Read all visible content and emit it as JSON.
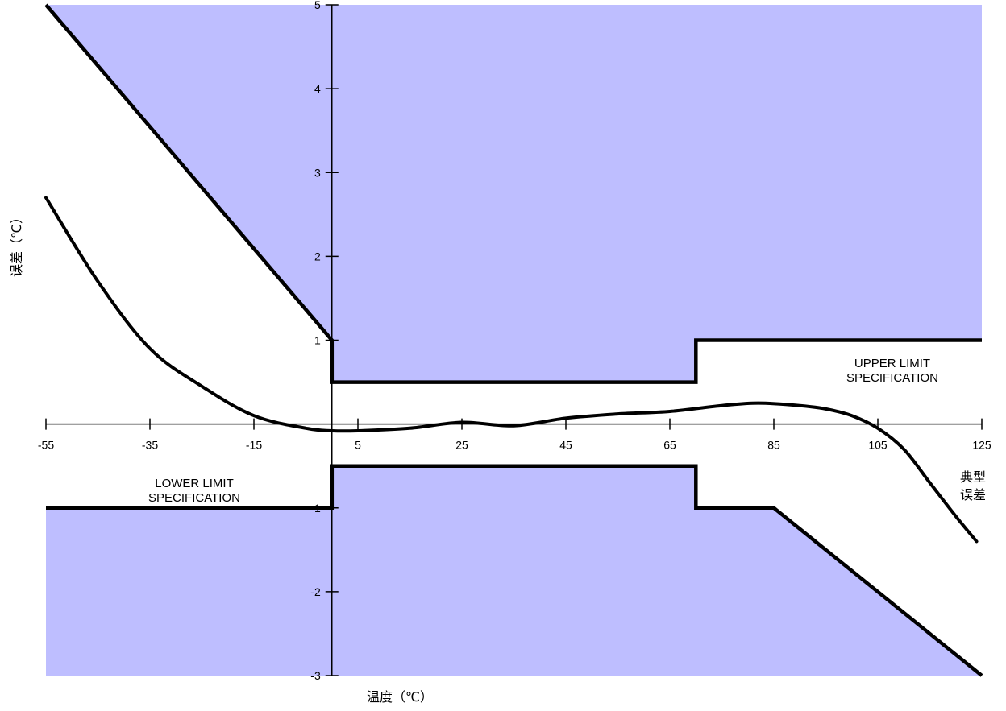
{
  "chart_data": {
    "type": "line",
    "xlabel": "温度（℃）",
    "ylabel": "误差（℃）",
    "xlim": [
      -55,
      125
    ],
    "ylim": [
      -3,
      5
    ],
    "x_ticks": [
      -55,
      -35,
      -15,
      5,
      25,
      45,
      65,
      85,
      105,
      125
    ],
    "y_ticks": [
      5,
      4,
      3,
      2,
      1,
      -1,
      -2,
      -3
    ],
    "x_tick_labels": [
      "-55",
      "-35",
      "-15",
      "5",
      "25",
      "45",
      "65",
      "85",
      "105",
      "125"
    ],
    "y_tick_labels": [
      "5",
      "4",
      "3",
      "2",
      "1",
      "-1",
      "-2",
      "-3"
    ],
    "grid": false,
    "fill_color": "#bebeff",
    "line_color": "#000000",
    "series": [
      {
        "label": "UPPER LIMIT SPECIFICATION",
        "x": [
          -55,
          0,
          0,
          70,
          70,
          125
        ],
        "y": [
          5,
          1,
          0.5,
          0.5,
          1,
          1
        ]
      },
      {
        "label": "LOWER LIMIT SPECIFICATION",
        "x": [
          -55,
          0,
          0,
          70,
          70,
          85,
          125
        ],
        "y": [
          -1,
          -1,
          -0.5,
          -0.5,
          -1,
          -1,
          -3
        ]
      },
      {
        "label": "典型误差",
        "x": [
          -55,
          -45,
          -35,
          -25,
          -15,
          -5,
          0,
          5,
          15,
          25,
          35,
          45,
          55,
          65,
          75,
          82,
          90,
          95,
          100,
          105,
          110,
          115,
          120,
          124
        ],
        "y": [
          2.7,
          1.7,
          0.9,
          0.45,
          0.1,
          -0.05,
          -0.08,
          -0.08,
          -0.05,
          0.02,
          -0.02,
          0.07,
          0.12,
          0.15,
          0.22,
          0.25,
          0.22,
          0.18,
          0.1,
          -0.05,
          -0.3,
          -0.7,
          -1.1,
          -1.4
        ]
      }
    ],
    "annotations": {
      "upper_line1": "UPPER LIMIT",
      "upper_line2": "SPECIFICATION",
      "lower_line1": "LOWER LIMIT",
      "lower_line2": "SPECIFICATION",
      "typical_line1": "典型",
      "typical_line2": "误差"
    }
  }
}
